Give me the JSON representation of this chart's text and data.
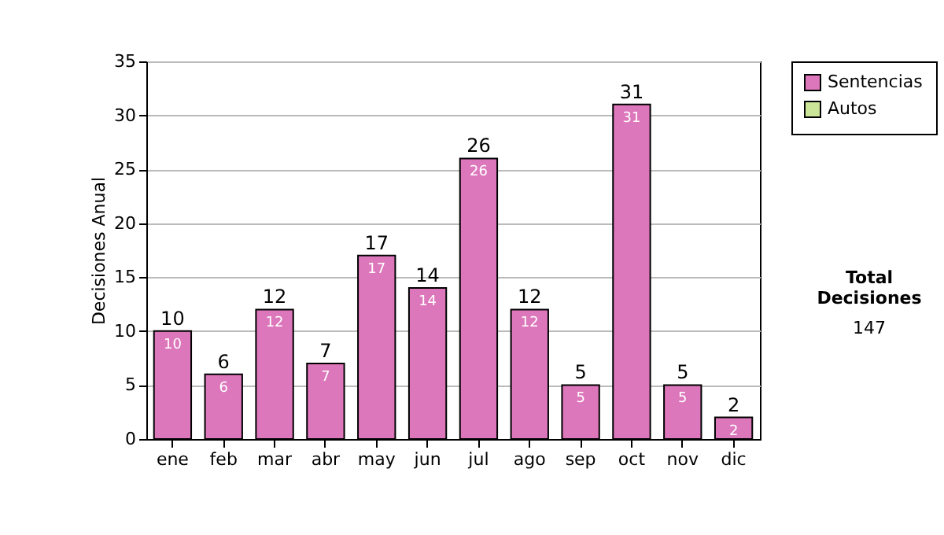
{
  "chart_data": {
    "type": "bar",
    "ylabel": "Decisiones Anual",
    "categories": [
      "ene",
      "feb",
      "mar",
      "abr",
      "may",
      "jun",
      "jul",
      "ago",
      "sep",
      "oct",
      "nov",
      "dic"
    ],
    "series": [
      {
        "name": "Sentencias",
        "color": "#dd77bb",
        "values": [
          10,
          6,
          12,
          7,
          17,
          14,
          26,
          12,
          5,
          31,
          5,
          2
        ]
      },
      {
        "name": "Autos",
        "color": "#cce699",
        "values": [
          null,
          null,
          null,
          null,
          null,
          null,
          null,
          null,
          null,
          null,
          null,
          null
        ]
      }
    ],
    "stacked": true,
    "data_labels": true,
    "totals": [
      "10",
      "6",
      "12",
      "7",
      "17",
      "14",
      "26",
      "12",
      "5",
      "31",
      "5",
      "2"
    ],
    "ylim": [
      0,
      35
    ],
    "yticks": [
      0,
      5,
      10,
      15,
      20,
      25,
      30,
      35
    ],
    "grid": "y",
    "legend": "right",
    "annotations": [
      "Total Decisiones",
      "147"
    ]
  }
}
